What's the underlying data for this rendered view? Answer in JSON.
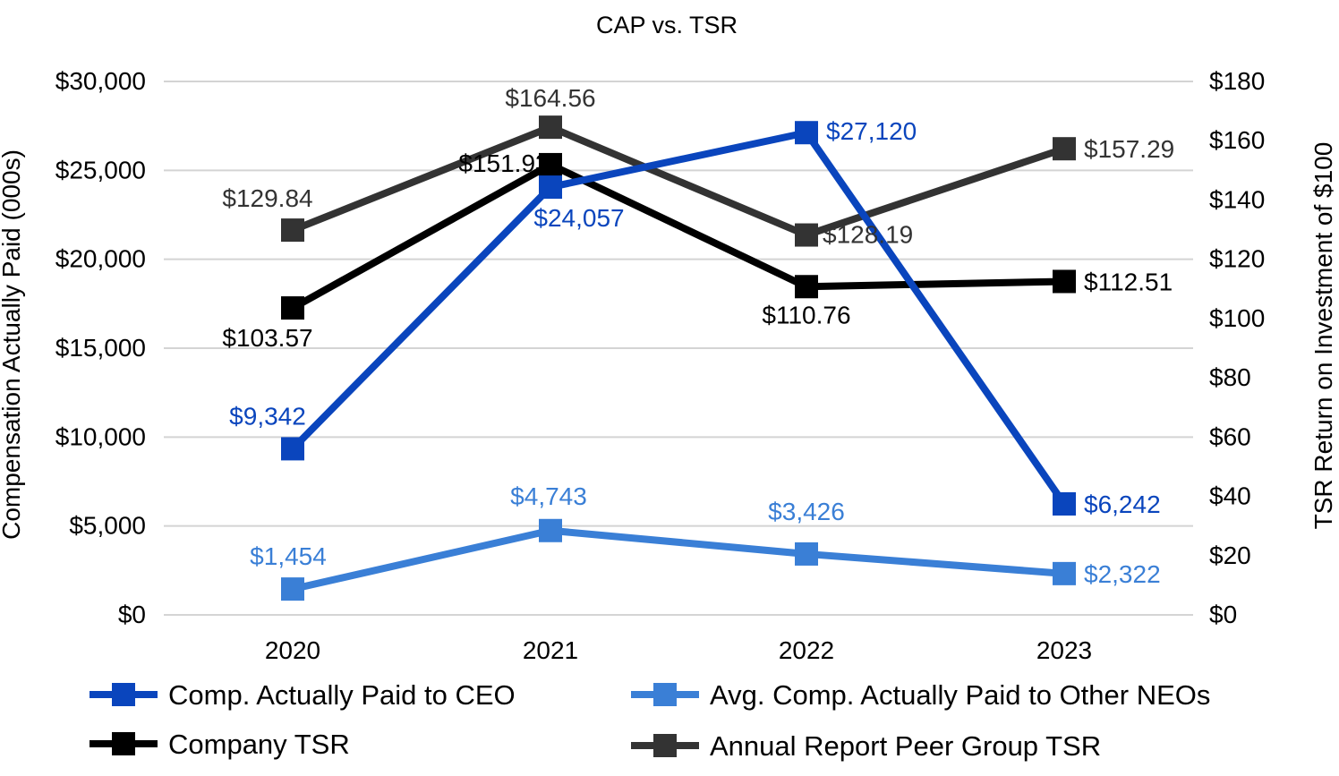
{
  "chart_data": {
    "type": "line",
    "title": "CAP vs. TSR",
    "categories": [
      "2020",
      "2021",
      "2022",
      "2023"
    ],
    "y_left": {
      "label": "Compensation Actually Paid (000s)",
      "range": [
        0,
        30000
      ],
      "ticks": [
        "$0",
        "$5,000",
        "$10,000",
        "$15,000",
        "$20,000",
        "$25,000",
        "$30,000"
      ]
    },
    "y_right": {
      "label": "TSR Return on Investment of $100",
      "range": [
        0,
        180
      ],
      "ticks": [
        "$0",
        "$20",
        "$40",
        "$60",
        "$80",
        "$100",
        "$120",
        "$140",
        "$160",
        "$180"
      ]
    },
    "grid": true,
    "legend_position": "bottom",
    "series": [
      {
        "name": "Comp. Actually Paid to CEO",
        "axis": "left",
        "color": "#0a45bd",
        "values": [
          9342,
          24057,
          27120,
          6242
        ],
        "labels": [
          "$9,342",
          "$24,057",
          "$27,120",
          "$6,242"
        ]
      },
      {
        "name": "Avg. Comp. Actually Paid to Other NEOs",
        "axis": "left",
        "color": "#3a7fd6",
        "values": [
          1454,
          4743,
          3426,
          2322
        ],
        "labels": [
          "$1,454",
          "$4,743",
          "$3,426",
          "$2,322"
        ]
      },
      {
        "name": "Company TSR",
        "axis": "right",
        "color": "#000000",
        "values": [
          103.57,
          151.93,
          110.76,
          112.51
        ],
        "labels": [
          "$103.57",
          "$151.93",
          "$110.76",
          "$112.51"
        ]
      },
      {
        "name": "Annual Report Peer Group TSR",
        "axis": "right",
        "color": "#333333",
        "values": [
          129.84,
          164.56,
          128.19,
          157.29
        ],
        "labels": [
          "$129.84",
          "$164.56",
          "$128.19",
          "$157.29"
        ]
      }
    ]
  }
}
